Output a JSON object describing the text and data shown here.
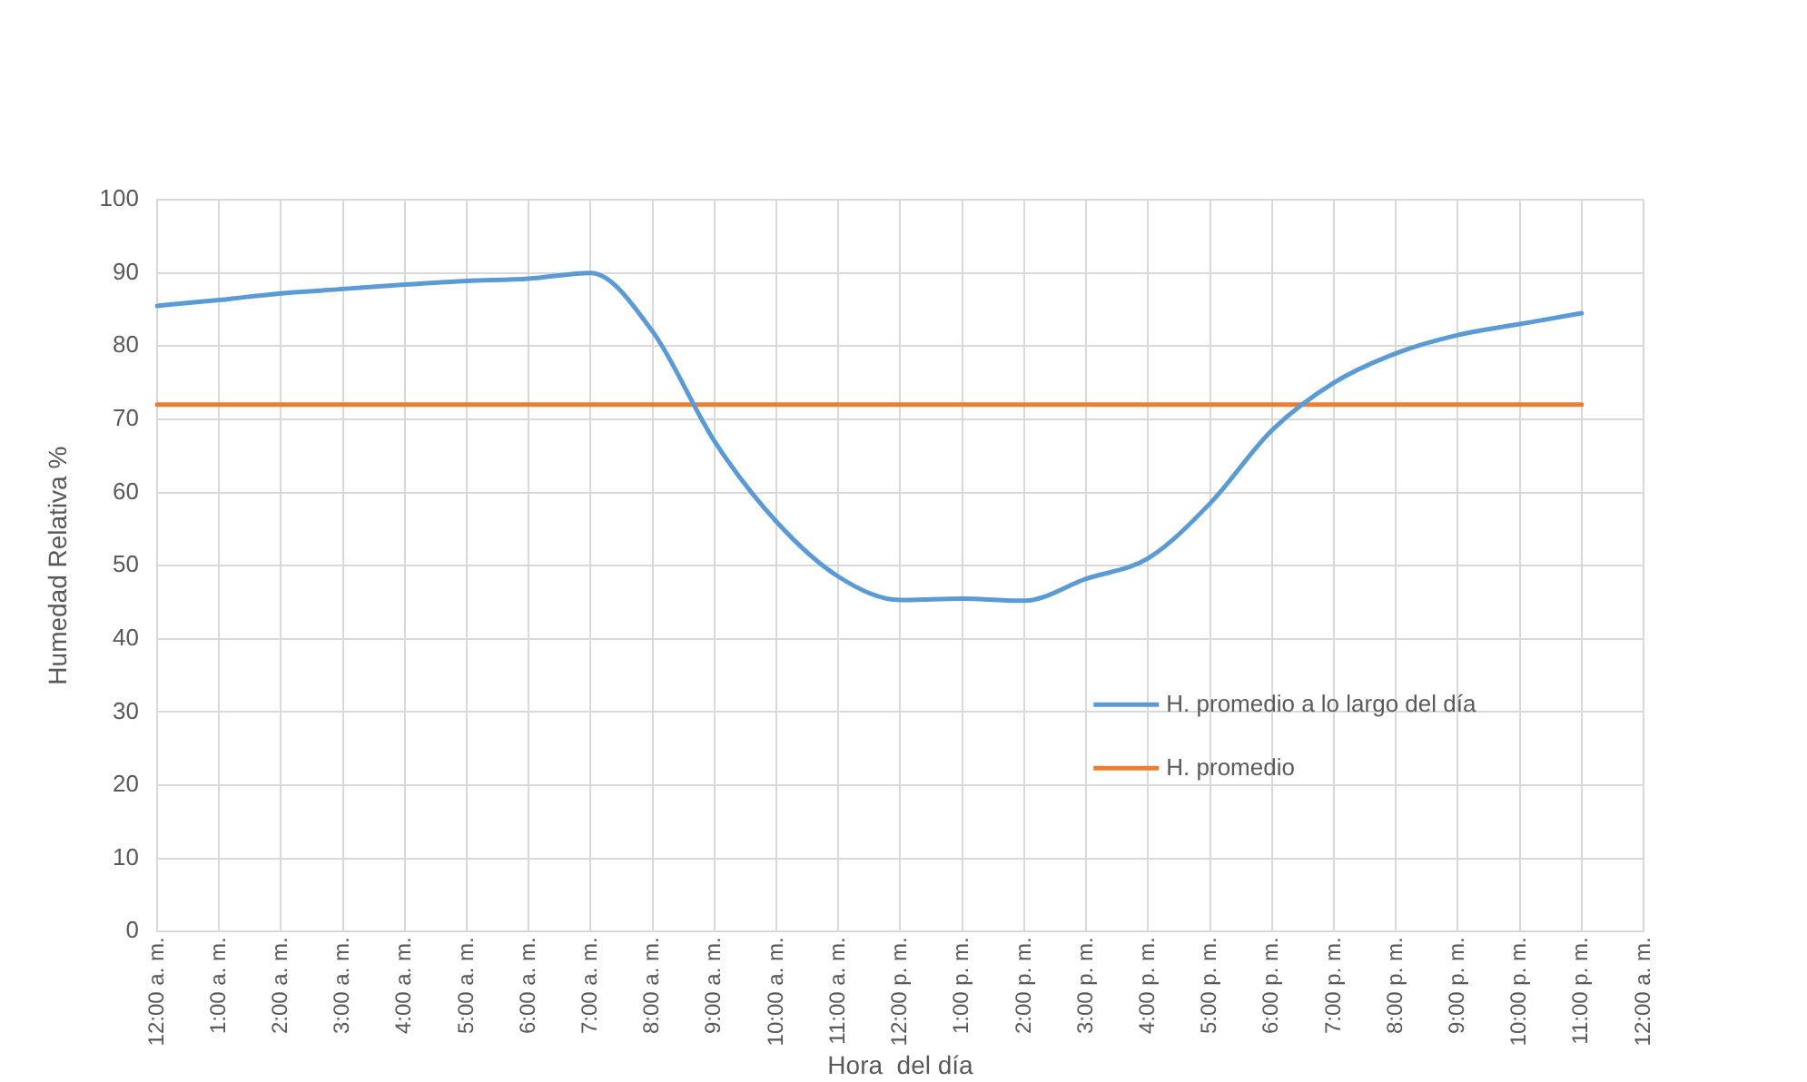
{
  "chart_data": {
    "type": "line",
    "xlabel": "Hora  del día",
    "ylabel": "Humedad Relativa %",
    "categories": [
      "12:00 a. m.",
      "1:00 a. m.",
      "2:00 a. m.",
      "3:00 a. m.",
      "4:00 a. m.",
      "5:00 a. m.",
      "6:00 a. m.",
      "7:00 a. m.",
      "8:00 a. m.",
      "9:00 a. m.",
      "10:00 a. m.",
      "11:00 a. m.",
      "12:00 p. m.",
      "1:00 p. m.",
      "2:00 p. m.",
      "3:00 p. m.",
      "4:00 p. m.",
      "5:00 p. m.",
      "6:00 p. m.",
      "7:00 p. m.",
      "8:00 p. m.",
      "9:00 p. m.",
      "10:00 p. m.",
      "11:00 p. m.",
      "12:00 a. m."
    ],
    "series": [
      {
        "name": "H. promedio a lo largo del día",
        "color": "#5b9bd5",
        "values": [
          85.5,
          86.3,
          87.2,
          87.8,
          88.4,
          88.9,
          89.2,
          90,
          82,
          67,
          56,
          48.5,
          45.3,
          45.5,
          45.2,
          48.2,
          51,
          58.5,
          68.5,
          75,
          79,
          81.5,
          83,
          84.5,
          null
        ]
      },
      {
        "name": "H. promedio",
        "color": "#ed7d31",
        "values": [
          72,
          72,
          72,
          72,
          72,
          72,
          72,
          72,
          72,
          72,
          72,
          72,
          72,
          72,
          72,
          72,
          72,
          72,
          72,
          72,
          72,
          72,
          72,
          72,
          null
        ]
      }
    ],
    "ylim": [
      0,
      100
    ],
    "yticks": [
      0,
      10,
      20,
      30,
      40,
      50,
      60,
      70,
      80,
      90,
      100
    ],
    "grid": true,
    "legend": "right",
    "marker": "none",
    "line_style": "solid"
  }
}
